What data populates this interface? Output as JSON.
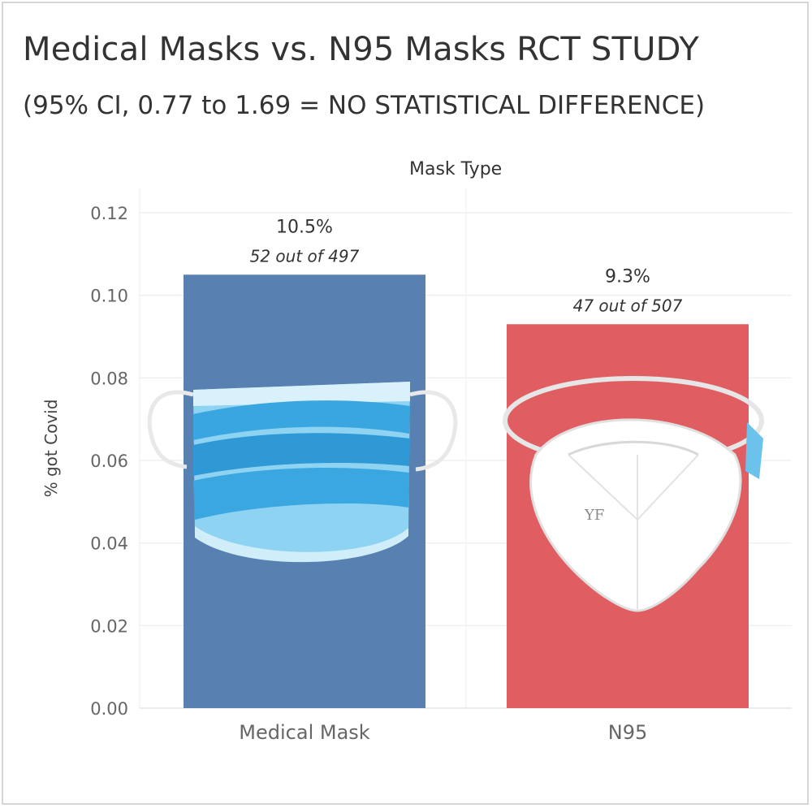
{
  "title": "Medical Masks vs. N95 Masks RCT STUDY",
  "subtitle": "(95% CI, 0.77 to 1.69 = NO STATISTICAL DIFFERENCE)",
  "chart_data": {
    "type": "bar",
    "title": "Medical Masks vs. N95 Masks RCT STUDY",
    "subtitle": "(95% CI, 0.77 to 1.69 = NO STATISTICAL DIFFERENCE)",
    "column_header": "Mask Type",
    "xlabel": "",
    "ylabel": "% got Covid",
    "ylim": [
      0,
      0.12
    ],
    "yticks": [
      "0.00",
      "0.02",
      "0.04",
      "0.06",
      "0.08",
      "0.10",
      "0.12"
    ],
    "grid": true,
    "categories": [
      "Medical Mask",
      "N95"
    ],
    "values": [
      0.105,
      0.093
    ],
    "value_labels": [
      "10.5%",
      "9.3%"
    ],
    "count_labels": [
      "52 out of  497",
      "47 out of  507"
    ],
    "colors": [
      "#5881b1",
      "#e05d62"
    ],
    "icons": [
      "surgical-mask-icon",
      "n95-respirator-icon"
    ]
  }
}
